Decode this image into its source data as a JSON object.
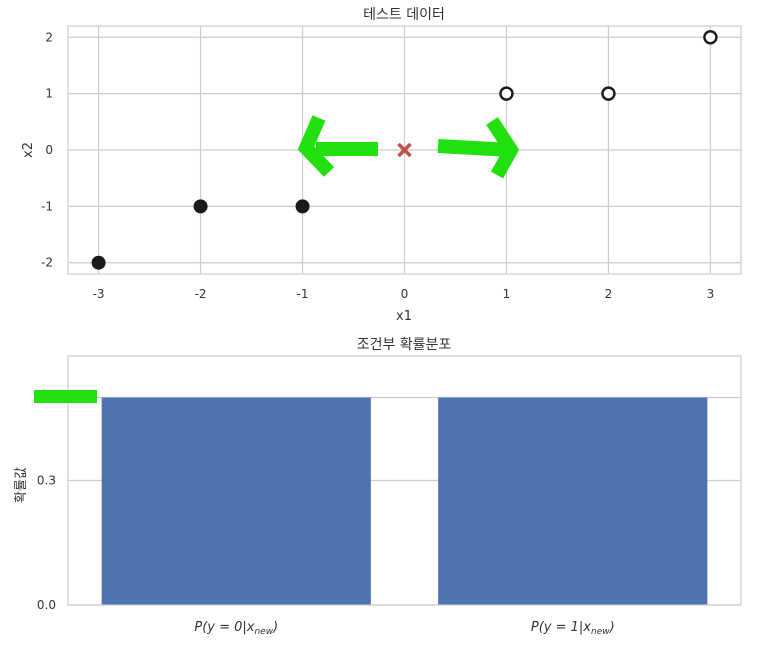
{
  "chart_data": [
    {
      "type": "scatter",
      "title": "테스트 데이터",
      "xlabel": "x1",
      "ylabel": "x2",
      "xlim": [
        -3.3,
        3.3
      ],
      "ylim": [
        -2.2,
        2.2
      ],
      "grid": true,
      "xticks": [
        "-3",
        "-2",
        "-1",
        "0",
        "1",
        "2",
        "3"
      ],
      "yticks": [
        "2",
        "1",
        "0",
        "-1",
        "-2"
      ],
      "series": [
        {
          "marker": "filled-circle",
          "color": "#1a1a1a",
          "points": [
            [
              -3,
              -2
            ],
            [
              -2,
              -1
            ],
            [
              -1,
              -1
            ]
          ]
        },
        {
          "marker": "hollow-circle",
          "color": "#1a1a1a",
          "points": [
            [
              1,
              1
            ],
            [
              2,
              1
            ],
            [
              3,
              2
            ]
          ]
        },
        {
          "marker": "x",
          "color": "#c0504d",
          "points": [
            [
              0,
              0
            ]
          ]
        }
      ],
      "annotations": [
        {
          "shape": "left-arrow",
          "color": "#22e00f"
        },
        {
          "shape": "right-arrow",
          "color": "#22e00f"
        }
      ]
    },
    {
      "type": "bar",
      "title": "조건부 확률분포",
      "ylabel": "확률값",
      "ylim": [
        0,
        0.6
      ],
      "grid": true,
      "yticks": [
        "0.0",
        "0.3",
        "0.5"
      ],
      "categories": [
        {
          "base": "P",
          "mid": "(y = 0|x",
          "sub": "new",
          "end": ")"
        },
        {
          "base": "P",
          "mid": "(y = 1|x",
          "sub": "new",
          "end": ")"
        }
      ],
      "values": [
        0.5,
        0.5
      ],
      "color": "#4f72b0",
      "annotations": [
        {
          "shape": "highlight-mark",
          "at_value": 0.5,
          "color": "#22e00f"
        }
      ]
    }
  ]
}
